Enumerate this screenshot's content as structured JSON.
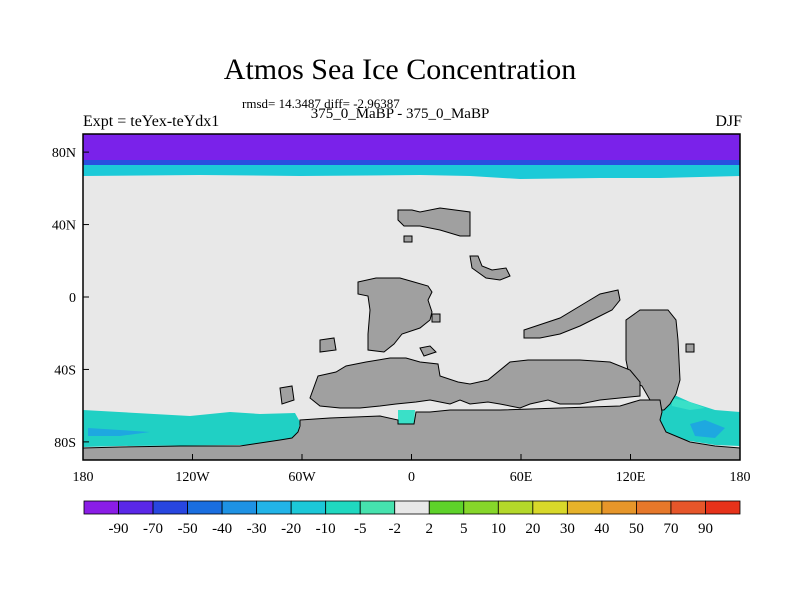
{
  "header": {
    "title": "Atmos Sea Ice Concentration",
    "stats": "rmsd= 14.3487 diff= -2.96387",
    "subtitle": "375_0_MaBP - 375_0_MaBP",
    "experiment": "Expt = teYex-teYdx1",
    "season": "DJF"
  },
  "chart_data": {
    "type": "heatmap",
    "title": "Atmos Sea Ice Concentration",
    "projection": "cylindrical equidistant",
    "x_ticks": [
      {
        "value": -180,
        "label": "180"
      },
      {
        "value": -120,
        "label": "120W"
      },
      {
        "value": -60,
        "label": "60W"
      },
      {
        "value": 0,
        "label": "0"
      },
      {
        "value": 60,
        "label": "60E"
      },
      {
        "value": 120,
        "label": "120E"
      },
      {
        "value": 180,
        "label": "180"
      }
    ],
    "y_ticks": [
      {
        "value": 80,
        "label": "80N"
      },
      {
        "value": 40,
        "label": "40N"
      },
      {
        "value": 0,
        "label": "0"
      },
      {
        "value": -40,
        "label": "40S"
      },
      {
        "value": -80,
        "label": "80S"
      }
    ],
    "xlim": [
      -180,
      180
    ],
    "ylim": [
      -90,
      90
    ],
    "colorbar": {
      "levels": [
        "-90",
        "-70",
        "-50",
        "-40",
        "-30",
        "-20",
        "-10",
        "-5",
        "-2",
        "2",
        "5",
        "10",
        "20",
        "30",
        "40",
        "50",
        "70",
        "90"
      ],
      "colors": [
        "#8a1de6",
        "#5a28e8",
        "#2846e0",
        "#1a6ee0",
        "#1e92e4",
        "#22b4e8",
        "#1cc8d8",
        "#20d8c0",
        "#46e2ae",
        "#e8e8e8",
        "#5ed22a",
        "#86d62a",
        "#b4d82a",
        "#d8d82a",
        "#e6b22a",
        "#e6962a",
        "#e6782a",
        "#e6562a",
        "#e6321a"
      ]
    },
    "colors": {
      "land": "#a0a0a0",
      "no_change": "#e8e8e8",
      "arctic_band": "#7a22ea",
      "arctic_band_edge": "#2850e0",
      "arctic_fringe": "#1ccad8",
      "southern_ice": "#20d0c4",
      "southern_ice_light": "#3ae0c8",
      "southern_ice_deep": "#1ea8e0"
    },
    "regions": [
      {
        "name": "arctic-decrease",
        "value_range": "-90 to -50",
        "lat": [
          66,
          90
        ],
        "lon": [
          -180,
          180
        ]
      },
      {
        "name": "antarctic-pacific-decrease",
        "value_range": "-20 to -5",
        "lat": [
          -90,
          -65
        ],
        "lon": [
          -180,
          -40
        ]
      },
      {
        "name": "antarctic-west-pacific-decrease",
        "value_range": "-30 to -5",
        "lat": [
          -90,
          -62
        ],
        "lon": [
          140,
          180
        ]
      }
    ]
  }
}
